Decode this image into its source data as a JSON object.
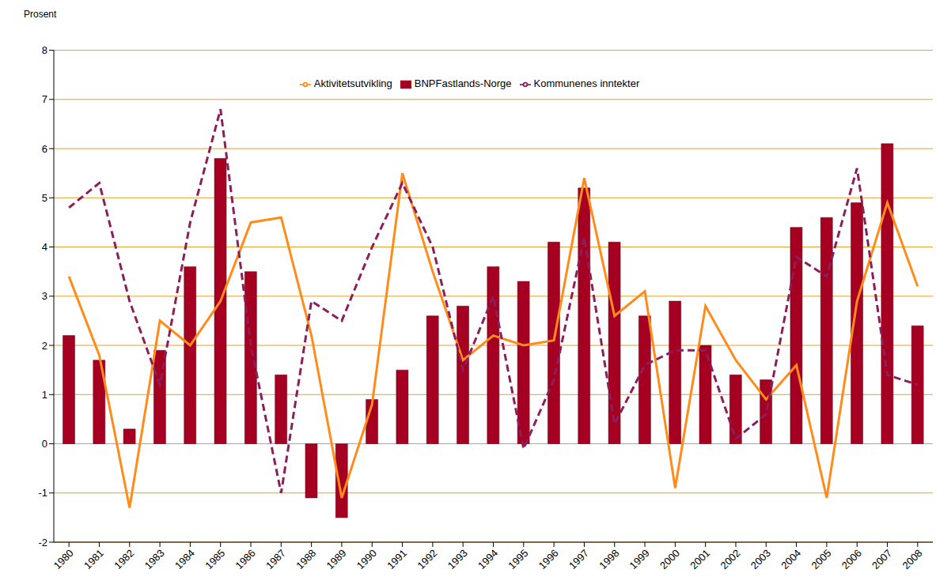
{
  "chart_data": {
    "type": "bar",
    "y_label": "Prosent",
    "categories": [
      "1980",
      "1981",
      "1982",
      "1983",
      "1984",
      "1985",
      "1986",
      "1987",
      "1988",
      "1989",
      "1990",
      "1991",
      "1992",
      "1993",
      "1994",
      "1995",
      "1996",
      "1997",
      "1998",
      "1999",
      "2000",
      "2001",
      "2002",
      "2003",
      "2004",
      "2005",
      "2006",
      "2007",
      "2008"
    ],
    "series": [
      {
        "name": "BNPFastlands-Norge",
        "type": "bar",
        "color": "#a50021",
        "values": [
          2.2,
          1.7,
          0.3,
          1.9,
          3.6,
          5.8,
          3.5,
          1.4,
          -1.1,
          -1.5,
          0.9,
          1.5,
          2.6,
          2.8,
          3.6,
          3.3,
          4.1,
          5.2,
          4.1,
          2.6,
          2.9,
          2.0,
          1.4,
          1.3,
          4.4,
          4.6,
          4.9,
          6.1,
          2.4
        ]
      },
      {
        "name": "Aktivitetsutvikling",
        "type": "line",
        "line_style": "solid",
        "color": "#ff8c1a",
        "values": [
          3.4,
          1.8,
          -1.3,
          2.5,
          2.0,
          2.9,
          4.5,
          4.6,
          2.2,
          -1.1,
          0.8,
          5.5,
          3.5,
          1.7,
          2.2,
          2.0,
          2.1,
          5.4,
          2.6,
          3.1,
          -0.9,
          2.8,
          1.7,
          0.9,
          1.6,
          -1.1,
          2.9,
          4.9,
          3.2
        ]
      },
      {
        "name": "Kommunenes inntekter",
        "type": "line",
        "line_style": "dashed",
        "color": "#8b1f5e",
        "values": [
          4.8,
          5.3,
          2.9,
          1.2,
          4.5,
          6.8,
          2.0,
          -1.0,
          2.9,
          2.5,
          4.0,
          5.3,
          4.0,
          1.5,
          3.0,
          -0.1,
          1.3,
          4.2,
          0.4,
          1.6,
          1.9,
          1.9,
          0.1,
          0.6,
          3.8,
          3.4,
          5.6,
          1.4,
          1.2
        ]
      }
    ],
    "ylim": [
      -2,
      8
    ],
    "yticks": [
      -2,
      -1,
      0,
      1,
      2,
      3,
      4,
      5,
      6,
      7,
      8
    ],
    "grid": true,
    "legend": "top"
  }
}
